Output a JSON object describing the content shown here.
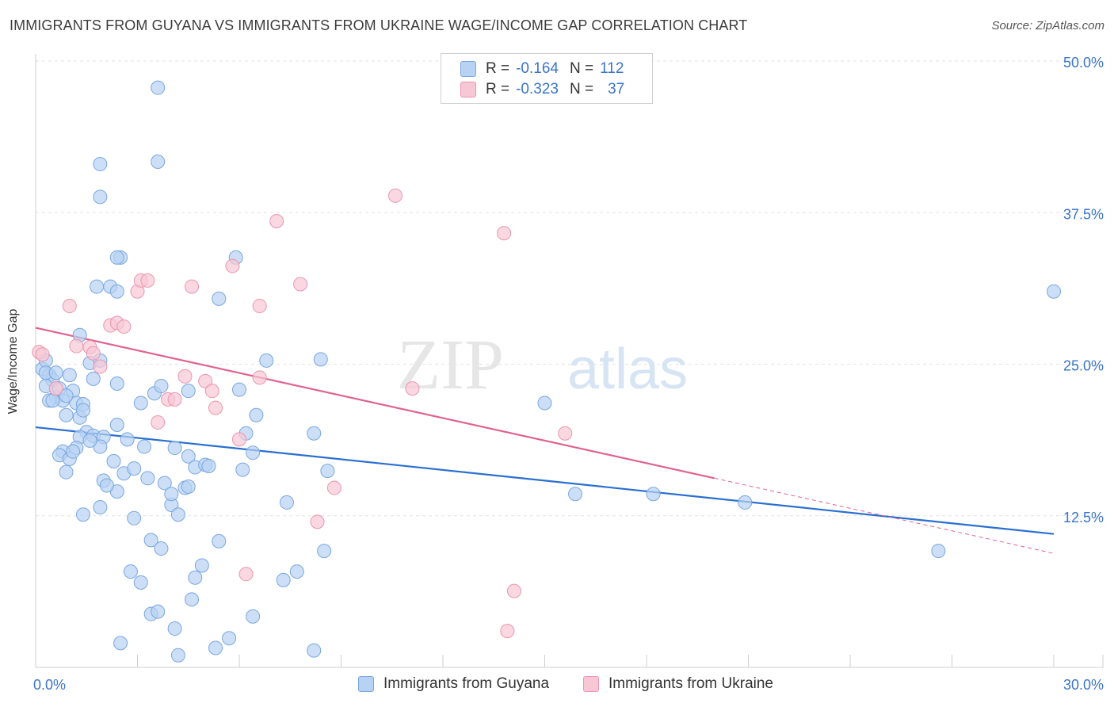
{
  "header": {
    "title": "IMMIGRANTS FROM GUYANA VS IMMIGRANTS FROM UKRAINE WAGE/INCOME GAP CORRELATION CHART",
    "source": "Source: ZipAtlas.com"
  },
  "legend_stats": [
    {
      "r_label": "R =",
      "r_value": "-0.164",
      "n_label": "N =",
      "n_value": "112"
    },
    {
      "r_label": "R =",
      "r_value": "-0.323",
      "n_label": "N =",
      "n_value": "37"
    }
  ],
  "watermark": {
    "part1": "ZIP",
    "part2": "atlas"
  },
  "colors": {
    "guyana_fill": "#b7d2f2",
    "guyana_stroke": "#7aa7e0",
    "guyana_line": "#2a6fd0",
    "ukraine_fill": "#f8c7d6",
    "ukraine_stroke": "#ec94b0",
    "ukraine_line": "#e0638e",
    "tick_label": "#3a74c8",
    "grid": "#e2e2e2"
  },
  "chart_data": {
    "type": "scatter",
    "title": "IMMIGRANTS FROM GUYANA VS IMMIGRANTS FROM UKRAINE WAGE/INCOME GAP CORRELATION CHART",
    "xlabel": "",
    "ylabel": "Wage/Income Gap",
    "xlim": [
      0,
      30
    ],
    "ylim": [
      0,
      50
    ],
    "x_tick_labels": [
      "0.0%",
      "30.0%"
    ],
    "y_ticks": [
      12.5,
      25.0,
      37.5,
      50.0
    ],
    "y_tick_labels": [
      "12.5%",
      "25.0%",
      "37.5%",
      "50.0%"
    ],
    "x_minor_ticks": [
      0,
      3,
      6,
      9,
      12,
      15,
      18,
      21,
      24,
      27,
      30
    ],
    "grid": true,
    "series": [
      {
        "name": "Immigrants from Guyana",
        "r": -0.164,
        "n": 112,
        "trend": {
          "x0": 0,
          "y0": 19.8,
          "x1": 30,
          "y1": 11.0
        },
        "points": [
          [
            0.2,
            24.6
          ],
          [
            0.3,
            25.3
          ],
          [
            0.4,
            24.1
          ],
          [
            0.5,
            23.7
          ],
          [
            0.3,
            23.2
          ],
          [
            0.6,
            22.3
          ],
          [
            0.8,
            22.0
          ],
          [
            0.4,
            22.0
          ],
          [
            0.7,
            23.0
          ],
          [
            1.1,
            22.8
          ],
          [
            1.2,
            21.8
          ],
          [
            1.4,
            21.7
          ],
          [
            0.9,
            20.8
          ],
          [
            1.3,
            20.6
          ],
          [
            1.4,
            21.2
          ],
          [
            1.5,
            19.4
          ],
          [
            1.3,
            19.0
          ],
          [
            1.7,
            19.1
          ],
          [
            2.0,
            19.0
          ],
          [
            1.9,
            18.2
          ],
          [
            1.2,
            18.1
          ],
          [
            0.8,
            17.8
          ],
          [
            0.7,
            17.5
          ],
          [
            1.0,
            17.2
          ],
          [
            1.6,
            18.7
          ],
          [
            2.3,
            17.0
          ],
          [
            0.9,
            16.1
          ],
          [
            2.7,
            18.8
          ],
          [
            3.2,
            18.2
          ],
          [
            3.5,
            22.6
          ],
          [
            2.4,
            20.0
          ],
          [
            1.0,
            24.1
          ],
          [
            1.7,
            23.8
          ],
          [
            1.6,
            25.1
          ],
          [
            1.9,
            25.3
          ],
          [
            2.4,
            23.4
          ],
          [
            3.7,
            23.2
          ],
          [
            4.5,
            22.8
          ],
          [
            3.1,
            21.8
          ],
          [
            1.3,
            27.4
          ],
          [
            4.1,
            18.1
          ],
          [
            4.5,
            17.4
          ],
          [
            2.6,
            16.0
          ],
          [
            3.3,
            15.6
          ],
          [
            2.9,
            16.4
          ],
          [
            4.7,
            16.5
          ],
          [
            3.8,
            15.2
          ],
          [
            2.0,
            15.4
          ],
          [
            2.4,
            14.5
          ],
          [
            2.1,
            15.0
          ],
          [
            4.4,
            14.8
          ],
          [
            4.0,
            13.4
          ],
          [
            1.9,
            13.2
          ],
          [
            4.0,
            14.3
          ],
          [
            4.5,
            14.9
          ],
          [
            5.0,
            16.7
          ],
          [
            5.1,
            16.6
          ],
          [
            2.9,
            12.3
          ],
          [
            1.4,
            12.6
          ],
          [
            3.4,
            10.5
          ],
          [
            3.7,
            9.8
          ],
          [
            5.4,
            10.4
          ],
          [
            4.2,
            12.6
          ],
          [
            2.8,
            7.9
          ],
          [
            3.1,
            7.0
          ],
          [
            4.7,
            7.4
          ],
          [
            4.9,
            8.4
          ],
          [
            4.6,
            5.6
          ],
          [
            3.4,
            4.4
          ],
          [
            3.6,
            4.6
          ],
          [
            4.1,
            3.2
          ],
          [
            6.1,
            16.3
          ],
          [
            6.4,
            17.7
          ],
          [
            6.5,
            20.8
          ],
          [
            6.2,
            19.3
          ],
          [
            6.0,
            22.9
          ],
          [
            6.8,
            25.3
          ],
          [
            8.2,
            19.3
          ],
          [
            8.4,
            25.4
          ],
          [
            7.4,
            13.6
          ],
          [
            5.4,
            30.4
          ],
          [
            5.9,
            33.8
          ],
          [
            2.5,
            33.8
          ],
          [
            2.4,
            33.8
          ],
          [
            1.8,
            31.4
          ],
          [
            2.2,
            31.4
          ],
          [
            2.4,
            31.0
          ],
          [
            3.6,
            41.7
          ],
          [
            1.9,
            41.5
          ],
          [
            1.9,
            38.8
          ],
          [
            3.6,
            47.8
          ],
          [
            8.6,
            16.2
          ],
          [
            8.5,
            9.6
          ],
          [
            6.4,
            4.2
          ],
          [
            5.7,
            2.4
          ],
          [
            5.3,
            1.6
          ],
          [
            7.3,
            7.2
          ],
          [
            7.7,
            7.9
          ],
          [
            8.2,
            1.4
          ],
          [
            4.2,
            1.0
          ],
          [
            2.5,
            2.0
          ],
          [
            15.0,
            21.8
          ],
          [
            15.9,
            14.3
          ],
          [
            18.2,
            14.3
          ],
          [
            20.9,
            13.6
          ],
          [
            26.6,
            9.6
          ],
          [
            30.0,
            31.0
          ],
          [
            0.3,
            24.3
          ],
          [
            0.6,
            24.3
          ],
          [
            0.5,
            22.0
          ],
          [
            0.9,
            22.4
          ],
          [
            1.1,
            17.8
          ]
        ]
      },
      {
        "name": "Immigrants from Ukraine",
        "r": -0.323,
        "n": 37,
        "trend": {
          "x0": 0,
          "y0": 28.0,
          "x1": 20.0,
          "y1": 15.6,
          "dash_to_x": 30,
          "dash_to_y": 9.4
        },
        "points": [
          [
            0.1,
            26.0
          ],
          [
            0.2,
            25.8
          ],
          [
            1.2,
            26.5
          ],
          [
            1.6,
            26.4
          ],
          [
            1.7,
            25.9
          ],
          [
            1.9,
            24.8
          ],
          [
            1.0,
            29.8
          ],
          [
            2.2,
            28.2
          ],
          [
            2.4,
            28.4
          ],
          [
            2.6,
            28.1
          ],
          [
            3.0,
            31.0
          ],
          [
            3.1,
            31.9
          ],
          [
            3.3,
            31.9
          ],
          [
            3.6,
            20.2
          ],
          [
            3.9,
            22.1
          ],
          [
            4.1,
            22.1
          ],
          [
            4.4,
            24.0
          ],
          [
            4.6,
            31.4
          ],
          [
            5.0,
            23.6
          ],
          [
            5.2,
            22.8
          ],
          [
            5.3,
            21.4
          ],
          [
            5.8,
            33.1
          ],
          [
            6.0,
            18.8
          ],
          [
            6.2,
            7.7
          ],
          [
            6.6,
            23.9
          ],
          [
            6.6,
            29.8
          ],
          [
            7.1,
            36.8
          ],
          [
            7.8,
            31.6
          ],
          [
            8.3,
            12.0
          ],
          [
            8.8,
            14.8
          ],
          [
            11.1,
            23.0
          ],
          [
            10.6,
            38.9
          ],
          [
            13.9,
            3.0
          ],
          [
            14.1,
            6.3
          ],
          [
            13.8,
            35.8
          ],
          [
            15.6,
            19.3
          ],
          [
            0.6,
            23.0
          ]
        ]
      }
    ]
  },
  "bottom_legend": [
    {
      "label": "Immigrants from Guyana"
    },
    {
      "label": "Immigrants from Ukraine"
    }
  ]
}
